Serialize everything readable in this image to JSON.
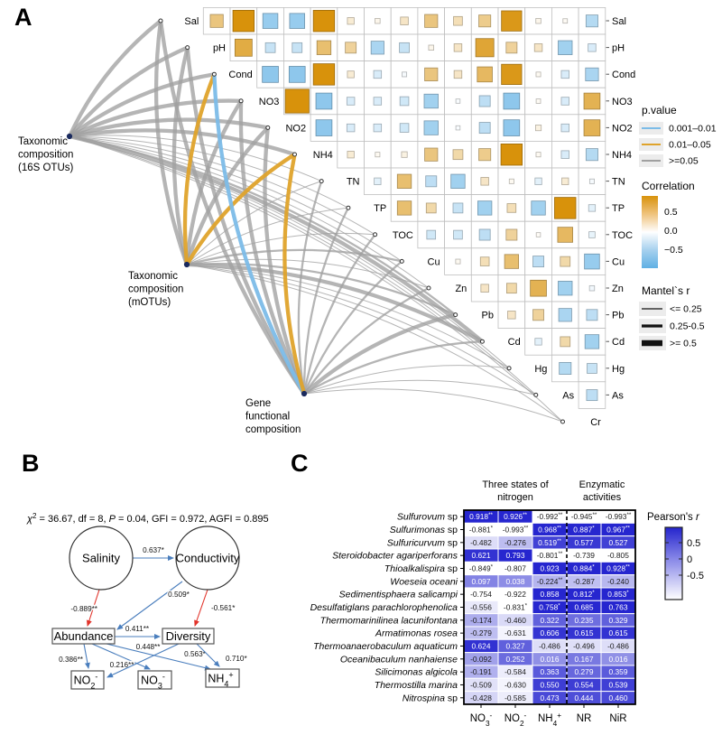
{
  "panelA": {
    "label": "A",
    "nodes": [
      {
        "id": "16S",
        "lines": [
          "Taxonomic",
          "composition",
          "(16S OTUs)"
        ]
      },
      {
        "id": "mOTUs",
        "lines": [
          "Taxonomic",
          "composition",
          "(mOTUs)"
        ]
      },
      {
        "id": "Gene",
        "lines": [
          "Gene",
          "functional",
          "composition"
        ]
      }
    ],
    "variables": [
      "Sal",
      "pH",
      "Cond",
      "NO3",
      "NO2",
      "NH4",
      "TN",
      "TP",
      "TOC",
      "Cu",
      "Zn",
      "Pb",
      "Cd",
      "Hg",
      "As",
      "Cr"
    ],
    "corr": [
      [
        0.45,
        0.85,
        -0.55,
        -0.55,
        0.85,
        0.15,
        0.07,
        0.2,
        0.45,
        0.25,
        0.4,
        0.8,
        0.07,
        0.04,
        -0.4
      ],
      [
        0.65,
        -0.3,
        -0.3,
        0.5,
        0.35,
        -0.45,
        -0.3,
        0.07,
        0.2,
        0.7,
        0.35,
        0.2,
        -0.5,
        -0.2
      ],
      [
        -0.6,
        -0.6,
        0.85,
        0.15,
        -0.2,
        -0.05,
        0.45,
        0.2,
        0.55,
        0.8,
        0.05,
        -0.2,
        -0.45
      ],
      [
        0.97,
        -0.6,
        -0.2,
        -0.2,
        -0.25,
        -0.5,
        -0.03,
        -0.35,
        -0.6,
        0.04,
        -0.2,
        0.6
      ],
      [
        -0.6,
        -0.2,
        -0.2,
        -0.25,
        -0.5,
        -0.03,
        -0.35,
        -0.6,
        0.1,
        -0.2,
        0.6
      ],
      [
        0.15,
        0.05,
        0.1,
        0.45,
        0.3,
        0.4,
        0.85,
        0.05,
        -0.2,
        -0.4
      ],
      [
        -0.15,
        0.5,
        -0.35,
        -0.5,
        0.2,
        0.05,
        -0.15,
        0.15,
        -0.05
      ],
      [
        0.5,
        0.3,
        -0.3,
        -0.5,
        0.25,
        -0.5,
        0.85,
        -0.15
      ],
      [
        -0.25,
        -0.25,
        -0.35,
        0.35,
        0.03,
        0.55,
        -0.12
      ],
      [
        0.05,
        0.25,
        0.5,
        -0.35,
        0.3,
        -0.55
      ],
      [
        0.2,
        0.3,
        0.6,
        -0.5,
        -0.07
      ],
      [
        0.2,
        0.35,
        -0.45,
        -0.35
      ],
      [
        -0.15,
        0.3,
        -0.5
      ],
      [
        -0.4,
        -0.3
      ],
      [
        -0.35
      ]
    ],
    "edges": [
      {
        "from": "16S",
        "to": "Sal",
        "r": "large",
        "p": "ns"
      },
      {
        "from": "16S",
        "to": "pH",
        "r": "large",
        "p": "ns"
      },
      {
        "from": "16S",
        "to": "Cond",
        "r": "large",
        "p": "ns"
      },
      {
        "from": "16S",
        "to": "NO3",
        "r": "large",
        "p": "ns"
      },
      {
        "from": "16S",
        "to": "NO2",
        "r": "large",
        "p": "ns"
      },
      {
        "from": "16S",
        "to": "NH4",
        "r": "large",
        "p": "ns"
      },
      {
        "from": "16S",
        "to": "TN",
        "r": "small",
        "p": "ns"
      },
      {
        "from": "16S",
        "to": "TP",
        "r": "small",
        "p": "ns"
      },
      {
        "from": "16S",
        "to": "TOC",
        "r": "small",
        "p": "ns"
      },
      {
        "from": "16S",
        "to": "Cu",
        "r": "small",
        "p": "ns"
      },
      {
        "from": "16S",
        "to": "Zn",
        "r": "small",
        "p": "ns"
      },
      {
        "from": "16S",
        "to": "Pb",
        "r": "mid",
        "p": "ns"
      },
      {
        "from": "16S",
        "to": "Cd",
        "r": "large",
        "p": "ns"
      },
      {
        "from": "16S",
        "to": "Hg",
        "r": "small",
        "p": "ns"
      },
      {
        "from": "16S",
        "to": "As",
        "r": "small",
        "p": "ns"
      },
      {
        "from": "16S",
        "to": "Cr",
        "r": "small",
        "p": "ns"
      },
      {
        "from": "mOTUs",
        "to": "Sal",
        "r": "large",
        "p": "ns"
      },
      {
        "from": "mOTUs",
        "to": "pH",
        "r": "large",
        "p": "ns"
      },
      {
        "from": "mOTUs",
        "to": "Cond",
        "r": "large",
        "p": "p05"
      },
      {
        "from": "mOTUs",
        "to": "NO3",
        "r": "large",
        "p": "ns"
      },
      {
        "from": "mOTUs",
        "to": "NO2",
        "r": "large",
        "p": "ns"
      },
      {
        "from": "mOTUs",
        "to": "NH4",
        "r": "large",
        "p": "p05"
      },
      {
        "from": "mOTUs",
        "to": "TN",
        "r": "small",
        "p": "ns"
      },
      {
        "from": "mOTUs",
        "to": "TP",
        "r": "small",
        "p": "ns"
      },
      {
        "from": "mOTUs",
        "to": "TOC",
        "r": "small",
        "p": "ns"
      },
      {
        "from": "mOTUs",
        "to": "Cu",
        "r": "mid",
        "p": "ns"
      },
      {
        "from": "mOTUs",
        "to": "Zn",
        "r": "small",
        "p": "ns"
      },
      {
        "from": "mOTUs",
        "to": "Pb",
        "r": "mid",
        "p": "ns"
      },
      {
        "from": "mOTUs",
        "to": "Cd",
        "r": "large",
        "p": "ns"
      },
      {
        "from": "mOTUs",
        "to": "Hg",
        "r": "small",
        "p": "ns"
      },
      {
        "from": "mOTUs",
        "to": "As",
        "r": "small",
        "p": "ns"
      },
      {
        "from": "mOTUs",
        "to": "Cr",
        "r": "small",
        "p": "ns"
      },
      {
        "from": "Gene",
        "to": "Sal",
        "r": "large",
        "p": "ns"
      },
      {
        "from": "Gene",
        "to": "pH",
        "r": "large",
        "p": "ns"
      },
      {
        "from": "Gene",
        "to": "Cond",
        "r": "large",
        "p": "p01"
      },
      {
        "from": "Gene",
        "to": "NO3",
        "r": "large",
        "p": "ns"
      },
      {
        "from": "Gene",
        "to": "NO2",
        "r": "large",
        "p": "ns"
      },
      {
        "from": "Gene",
        "to": "NH4",
        "r": "large",
        "p": "p05"
      },
      {
        "from": "Gene",
        "to": "TN",
        "r": "mid",
        "p": "ns"
      },
      {
        "from": "Gene",
        "to": "TP",
        "r": "mid",
        "p": "ns"
      },
      {
        "from": "Gene",
        "to": "TOC",
        "r": "mid",
        "p": "ns"
      },
      {
        "from": "Gene",
        "to": "Cu",
        "r": "mid",
        "p": "ns"
      },
      {
        "from": "Gene",
        "to": "Zn",
        "r": "mid",
        "p": "ns"
      },
      {
        "from": "Gene",
        "to": "Pb",
        "r": "large",
        "p": "ns"
      },
      {
        "from": "Gene",
        "to": "Cd",
        "r": "mid",
        "p": "ns"
      },
      {
        "from": "Gene",
        "to": "Hg",
        "r": "small",
        "p": "ns"
      },
      {
        "from": "Gene",
        "to": "As",
        "r": "small",
        "p": "ns"
      },
      {
        "from": "Gene",
        "to": "Cr",
        "r": "small",
        "p": "ns"
      }
    ],
    "legend_p": {
      "title": "p.value",
      "items": [
        {
          "label": "0.001–0.01",
          "key": "p01"
        },
        {
          "label": "0.01–0.05",
          "key": "p05"
        },
        {
          "label": ">=0.05",
          "key": "ns"
        }
      ]
    },
    "legend_corr": {
      "title": "Correlation",
      "ticks": [
        "0.5",
        "0.0",
        "−0.5"
      ]
    },
    "legend_mantel": {
      "title": "Mantel`s r",
      "items": [
        {
          "label": "<= 0.25",
          "key": "small"
        },
        {
          "label": "0.25-0.5",
          "key": "mid"
        },
        {
          "label": ">= 0.5",
          "key": "large"
        }
      ]
    },
    "colors": {
      "pos": "#D8920B",
      "neg": "#5FB0E4",
      "edge_ns": "#A0A0A0",
      "edge_p05": "#DFA32B",
      "edge_p01": "#7CBCE8"
    }
  },
  "panelB": {
    "label": "B",
    "fit_line": [
      {
        "t": "χ",
        "italic": true
      },
      {
        "sup": "2"
      },
      {
        "t": " = 36.67, df = 8, "
      },
      {
        "t": "P",
        "italic": true
      },
      {
        "t": " = 0.04, GFI = 0.972, AGFI = 0.895"
      }
    ],
    "latent": [
      "Salinity",
      "Conductivity"
    ],
    "observed": [
      "Abundance",
      "Diversity"
    ],
    "outcomes": {
      "NO2": {
        "base": "NO",
        "sub": "2",
        "sup": "-"
      },
      "NO3": {
        "base": "NO",
        "sub": "3",
        "sup": "-"
      },
      "NH4": {
        "base": "NH",
        "sub": "4",
        "sup": "+"
      }
    },
    "paths": [
      {
        "from": "Salinity",
        "to": "Conductivity",
        "coef": "0.637*",
        "sign": "pos"
      },
      {
        "from": "Salinity",
        "to": "Abundance",
        "coef": "-0.889**",
        "sign": "neg"
      },
      {
        "from": "Conductivity",
        "to": "Abundance",
        "coef": "0.509*",
        "sign": "pos"
      },
      {
        "from": "Conductivity",
        "to": "Diversity",
        "coef": "-0.561*",
        "sign": "neg"
      },
      {
        "from": "Abundance",
        "to": "Diversity",
        "coef": "0.411**",
        "sign": "pos"
      },
      {
        "from": "Abundance",
        "to": "NO2",
        "coef": "0.386**",
        "sign": "pos"
      },
      {
        "from": "Abundance",
        "to": "NO3",
        "coef": "0.216**",
        "sign": "pos"
      },
      {
        "from": "Abundance",
        "to": "NH4",
        "coef": "0.448**",
        "sign": "pos"
      },
      {
        "from": "Diversity",
        "to": "NO2",
        "coef": "0.563*",
        "sign": "pos"
      },
      {
        "from": "Diversity",
        "to": "NH4",
        "coef": "0.710*",
        "sign": "pos"
      }
    ],
    "colors": {
      "pos": "#4A7EBD",
      "neg": "#E2342B"
    }
  },
  "panelC": {
    "label": "C",
    "col_groups": [
      {
        "lines": [
          "Three states of",
          "nitrogen"
        ]
      },
      {
        "lines": [
          "Enzymatic",
          "activities"
        ]
      }
    ],
    "columns": [
      {
        "base": "NO",
        "sub": "3",
        "sup": "-"
      },
      {
        "base": "NO",
        "sub": "2",
        "sup": "-"
      },
      {
        "base": "NH",
        "sub": "4",
        "sup": "+"
      },
      {
        "base": "NR"
      },
      {
        "base": "NiR"
      }
    ],
    "rows": [
      {
        "name": "Sulfurovum",
        "tail": " sp",
        "values": [
          [
            "0.918",
            "**"
          ],
          [
            "0.926",
            "**"
          ],
          [
            "-0.992",
            "**"
          ],
          [
            "-0.945",
            "**"
          ],
          [
            "-0.993",
            "**"
          ]
        ]
      },
      {
        "name": "Sulfurimonas",
        "tail": " sp",
        "values": [
          [
            "-0.881",
            "*"
          ],
          [
            "-0.993",
            "**"
          ],
          [
            "0.968",
            "**"
          ],
          [
            "0.887",
            "*"
          ],
          [
            "0.967",
            "**"
          ]
        ]
      },
      {
        "name": "Sulfuricurvum",
        "tail": " sp",
        "values": [
          [
            "-0.482",
            ""
          ],
          [
            "-0.276",
            ""
          ],
          [
            "0.519",
            "**"
          ],
          [
            "0.577",
            ""
          ],
          [
            "0.527",
            ""
          ]
        ]
      },
      {
        "name": "Steroidobacter agariperforans",
        "tail": "",
        "values": [
          [
            "0.621",
            ""
          ],
          [
            "0.793",
            ""
          ],
          [
            "-0.801",
            "**"
          ],
          [
            "-0.739",
            ""
          ],
          [
            "-0.805",
            ""
          ]
        ]
      },
      {
        "name": "Thioalkalispira",
        "tail": " sp",
        "values": [
          [
            "-0.849",
            "*"
          ],
          [
            "-0.807",
            ""
          ],
          [
            "0.923",
            ""
          ],
          [
            "0.884",
            "*"
          ],
          [
            "0.928",
            "**"
          ]
        ]
      },
      {
        "name": "Woeseia oceani",
        "tail": "",
        "values": [
          [
            "0.097",
            ""
          ],
          [
            "0.038",
            ""
          ],
          [
            "-0.224",
            "**"
          ],
          [
            "-0.287",
            ""
          ],
          [
            "-0.240",
            ""
          ]
        ]
      },
      {
        "name": "Sedimentisphaera salicampi",
        "tail": "",
        "values": [
          [
            "-0.754",
            ""
          ],
          [
            "-0.922",
            ""
          ],
          [
            "0.858",
            ""
          ],
          [
            "0.812",
            "*"
          ],
          [
            "0.853",
            "*"
          ]
        ]
      },
      {
        "name": "Desulfatiglans parachlorophenolica",
        "tail": "",
        "values": [
          [
            "-0.556",
            ""
          ],
          [
            "-0.831",
            "*"
          ],
          [
            "0.758",
            "*"
          ],
          [
            "0.685",
            ""
          ],
          [
            "0.763",
            ""
          ]
        ]
      },
      {
        "name": "Thermomarinilinea lacunifontana",
        "tail": "",
        "values": [
          [
            "-0.174",
            ""
          ],
          [
            "-0.460",
            ""
          ],
          [
            "0.322",
            ""
          ],
          [
            "0.235",
            ""
          ],
          [
            "0.329",
            ""
          ]
        ]
      },
      {
        "name": "Armatimonas rosea",
        "tail": "",
        "values": [
          [
            "-0.279",
            ""
          ],
          [
            "-0.631",
            ""
          ],
          [
            "0.606",
            ""
          ],
          [
            "0.615",
            ""
          ],
          [
            "0.615",
            ""
          ]
        ]
      },
      {
        "name": "Thermoanaerobaculum aquaticum",
        "tail": "",
        "values": [
          [
            "0.624",
            ""
          ],
          [
            "0.327",
            ""
          ],
          [
            "-0.486",
            ""
          ],
          [
            "-0.496",
            ""
          ],
          [
            "-0.486",
            ""
          ]
        ]
      },
      {
        "name": "Oceanibaculum nanhaiense",
        "tail": "",
        "values": [
          [
            "-0.092",
            ""
          ],
          [
            "0.252",
            ""
          ],
          [
            "0.016",
            ""
          ],
          [
            "0.167",
            ""
          ],
          [
            "0.016",
            ""
          ]
        ]
      },
      {
        "name": "Silicimonas algicola",
        "tail": "",
        "values": [
          [
            "-0.191",
            ""
          ],
          [
            "-0.584",
            ""
          ],
          [
            "0.363",
            ""
          ],
          [
            "0.279",
            ""
          ],
          [
            "0.359",
            ""
          ]
        ]
      },
      {
        "name": "Thermostilla marina",
        "tail": "",
        "values": [
          [
            "-0.509",
            ""
          ],
          [
            "-0.630",
            ""
          ],
          [
            "0.550",
            ""
          ],
          [
            "0.554",
            ""
          ],
          [
            "0.539",
            ""
          ]
        ]
      },
      {
        "name": "Nitrospina",
        "tail": " sp",
        "values": [
          [
            "-0.428",
            ""
          ],
          [
            "-0.585",
            ""
          ],
          [
            "0.473",
            ""
          ],
          [
            "0.444",
            ""
          ],
          [
            "0.460",
            ""
          ]
        ]
      }
    ],
    "legend": {
      "title_plain": "Pearson's ",
      "title_italic": "r",
      "ticks": [
        "0.5",
        "0",
        "-0.5"
      ]
    },
    "colors": {
      "hi": "#2626CF",
      "lo": "#FFFFFF"
    }
  }
}
